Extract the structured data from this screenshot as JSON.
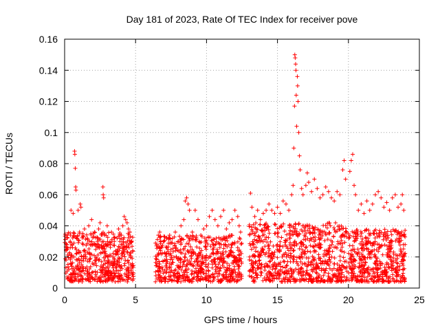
{
  "chart_data": {
    "type": "scatter",
    "title": "Day 181 of 2023, Rate Of TEC Index for receiver pove",
    "xlabel": "GPS time / hours",
    "ylabel": "ROTI / TECUs",
    "xlim": [
      0,
      25
    ],
    "ylim": [
      0,
      0.16
    ],
    "x_ticks": [
      "0",
      "5",
      "10",
      "15",
      "20",
      "25"
    ],
    "y_ticks": [
      "0",
      "0.02",
      "0.04",
      "0.06",
      "0.08",
      "0.1",
      "0.12",
      "0.14",
      "0.16"
    ],
    "grid": true,
    "marker": "+",
    "color": "#ff0000",
    "series": [
      {
        "points": [
          [
            0.1,
            0.018
          ],
          [
            0.15,
            0.028
          ],
          [
            0.2,
            0.034
          ],
          [
            0.3,
            0.012
          ],
          [
            0.35,
            0.022
          ],
          [
            0.4,
            0.03
          ],
          [
            0.45,
            0.05
          ],
          [
            0.5,
            0.014
          ],
          [
            0.55,
            0.026
          ],
          [
            0.6,
            0.048
          ],
          [
            0.65,
            0.02
          ],
          [
            0.7,
            0.088
          ],
          [
            0.72,
            0.086
          ],
          [
            0.75,
            0.077
          ],
          [
            0.78,
            0.065
          ],
          [
            0.8,
            0.063
          ],
          [
            0.85,
            0.032
          ],
          [
            0.9,
            0.018
          ],
          [
            0.95,
            0.05
          ],
          [
            1.0,
            0.024
          ],
          [
            1.05,
            0.036
          ],
          [
            1.1,
            0.054
          ],
          [
            1.15,
            0.052
          ],
          [
            1.2,
            0.015
          ],
          [
            1.3,
            0.028
          ],
          [
            1.4,
            0.038
          ],
          [
            1.5,
            0.02
          ],
          [
            1.6,
            0.032
          ],
          [
            1.7,
            0.04
          ],
          [
            1.8,
            0.022
          ],
          [
            1.9,
            0.044
          ],
          [
            2.0,
            0.028
          ],
          [
            2.1,
            0.036
          ],
          [
            2.2,
            0.018
          ],
          [
            2.3,
            0.03
          ],
          [
            2.4,
            0.038
          ],
          [
            2.5,
            0.042
          ],
          [
            2.6,
            0.026
          ],
          [
            2.7,
            0.065
          ],
          [
            2.72,
            0.06
          ],
          [
            2.75,
            0.058
          ],
          [
            2.8,
            0.034
          ],
          [
            2.9,
            0.022
          ],
          [
            3.0,
            0.04
          ],
          [
            3.1,
            0.018
          ],
          [
            3.2,
            0.028
          ],
          [
            3.3,
            0.036
          ],
          [
            3.4,
            0.02
          ],
          [
            3.5,
            0.03
          ],
          [
            3.6,
            0.024
          ],
          [
            3.7,
            0.032
          ],
          [
            3.8,
            0.038
          ],
          [
            3.9,
            0.026
          ],
          [
            4.0,
            0.034
          ],
          [
            4.1,
            0.04
          ],
          [
            4.2,
            0.046
          ],
          [
            4.3,
            0.044
          ],
          [
            4.4,
            0.042
          ],
          [
            4.5,
            0.038
          ],
          [
            4.6,
            0.036
          ],
          [
            4.7,
            0.03
          ],
          [
            4.8,
            0.024
          ],
          [
            6.5,
            0.028
          ],
          [
            6.6,
            0.034
          ],
          [
            6.7,
            0.036
          ],
          [
            6.8,
            0.022
          ],
          [
            7.0,
            0.03
          ],
          [
            7.2,
            0.026
          ],
          [
            7.4,
            0.034
          ],
          [
            7.6,
            0.032
          ],
          [
            7.8,
            0.036
          ],
          [
            8.0,
            0.03
          ],
          [
            8.2,
            0.04
          ],
          [
            8.4,
            0.044
          ],
          [
            8.5,
            0.056
          ],
          [
            8.6,
            0.058
          ],
          [
            8.7,
            0.054
          ],
          [
            8.8,
            0.05
          ],
          [
            9.0,
            0.036
          ],
          [
            9.2,
            0.05
          ],
          [
            9.4,
            0.044
          ],
          [
            9.6,
            0.034
          ],
          [
            9.8,
            0.038
          ],
          [
            10.0,
            0.04
          ],
          [
            10.2,
            0.046
          ],
          [
            10.4,
            0.05
          ],
          [
            10.6,
            0.044
          ],
          [
            10.8,
            0.04
          ],
          [
            11.0,
            0.046
          ],
          [
            11.2,
            0.05
          ],
          [
            11.4,
            0.038
          ],
          [
            11.6,
            0.042
          ],
          [
            11.8,
            0.044
          ],
          [
            12.0,
            0.05
          ],
          [
            12.2,
            0.046
          ],
          [
            12.3,
            0.04
          ],
          [
            12.4,
            0.036
          ],
          [
            13.1,
            0.061
          ],
          [
            13.2,
            0.052
          ],
          [
            13.4,
            0.046
          ],
          [
            13.6,
            0.05
          ],
          [
            13.8,
            0.044
          ],
          [
            14.0,
            0.048
          ],
          [
            14.2,
            0.05
          ],
          [
            14.4,
            0.054
          ],
          [
            14.6,
            0.05
          ],
          [
            14.8,
            0.048
          ],
          [
            15.0,
            0.052
          ],
          [
            15.2,
            0.048
          ],
          [
            15.4,
            0.056
          ],
          [
            15.6,
            0.054
          ],
          [
            15.8,
            0.05
          ],
          [
            16.0,
            0.06
          ],
          [
            16.1,
            0.066
          ],
          [
            16.15,
            0.09
          ],
          [
            16.2,
            0.117
          ],
          [
            16.22,
            0.15
          ],
          [
            16.25,
            0.148
          ],
          [
            16.28,
            0.144
          ],
          [
            16.3,
            0.14
          ],
          [
            16.32,
            0.124
          ],
          [
            16.35,
            0.104
          ],
          [
            16.4,
            0.136
          ],
          [
            16.42,
            0.13
          ],
          [
            16.45,
            0.12
          ],
          [
            16.5,
            0.1
          ],
          [
            16.55,
            0.085
          ],
          [
            16.6,
            0.076
          ],
          [
            16.7,
            0.064
          ],
          [
            16.8,
            0.06
          ],
          [
            17.0,
            0.066
          ],
          [
            17.1,
            0.074
          ],
          [
            17.2,
            0.068
          ],
          [
            17.4,
            0.062
          ],
          [
            17.6,
            0.07
          ],
          [
            17.8,
            0.064
          ],
          [
            18.0,
            0.058
          ],
          [
            18.2,
            0.06
          ],
          [
            18.4,
            0.065
          ],
          [
            18.6,
            0.062
          ],
          [
            18.8,
            0.058
          ],
          [
            19.0,
            0.056
          ],
          [
            19.2,
            0.062
          ],
          [
            19.4,
            0.06
          ],
          [
            19.6,
            0.076
          ],
          [
            19.7,
            0.082
          ],
          [
            19.8,
            0.07
          ],
          [
            20.1,
            0.075
          ],
          [
            20.2,
            0.082
          ],
          [
            20.3,
            0.086
          ],
          [
            20.4,
            0.066
          ],
          [
            20.5,
            0.06
          ],
          [
            20.7,
            0.05
          ],
          [
            20.9,
            0.054
          ],
          [
            21.1,
            0.048
          ],
          [
            21.3,
            0.056
          ],
          [
            21.5,
            0.05
          ],
          [
            21.7,
            0.054
          ],
          [
            21.9,
            0.06
          ],
          [
            22.1,
            0.062
          ],
          [
            22.3,
            0.058
          ],
          [
            22.5,
            0.052
          ],
          [
            22.7,
            0.055
          ],
          [
            22.9,
            0.05
          ],
          [
            23.1,
            0.058
          ],
          [
            23.3,
            0.06
          ],
          [
            23.5,
            0.052
          ],
          [
            23.7,
            0.054
          ],
          [
            23.8,
            0.06
          ],
          [
            23.9,
            0.05
          ]
        ],
        "segments": [
          {
            "x": [
              0.0,
              4.85
            ],
            "y_floor": 0.004,
            "y_ceil": 0.036,
            "n": 520
          },
          {
            "x": [
              6.4,
              12.5
            ],
            "y_floor": 0.004,
            "y_ceil": 0.034,
            "n": 640
          },
          {
            "x": [
              13.0,
              19.9
            ],
            "y_floor": 0.004,
            "y_ceil": 0.042,
            "n": 760
          },
          {
            "x": [
              20.0,
              24.0
            ],
            "y_floor": 0.004,
            "y_ceil": 0.038,
            "n": 480
          }
        ]
      }
    ]
  }
}
